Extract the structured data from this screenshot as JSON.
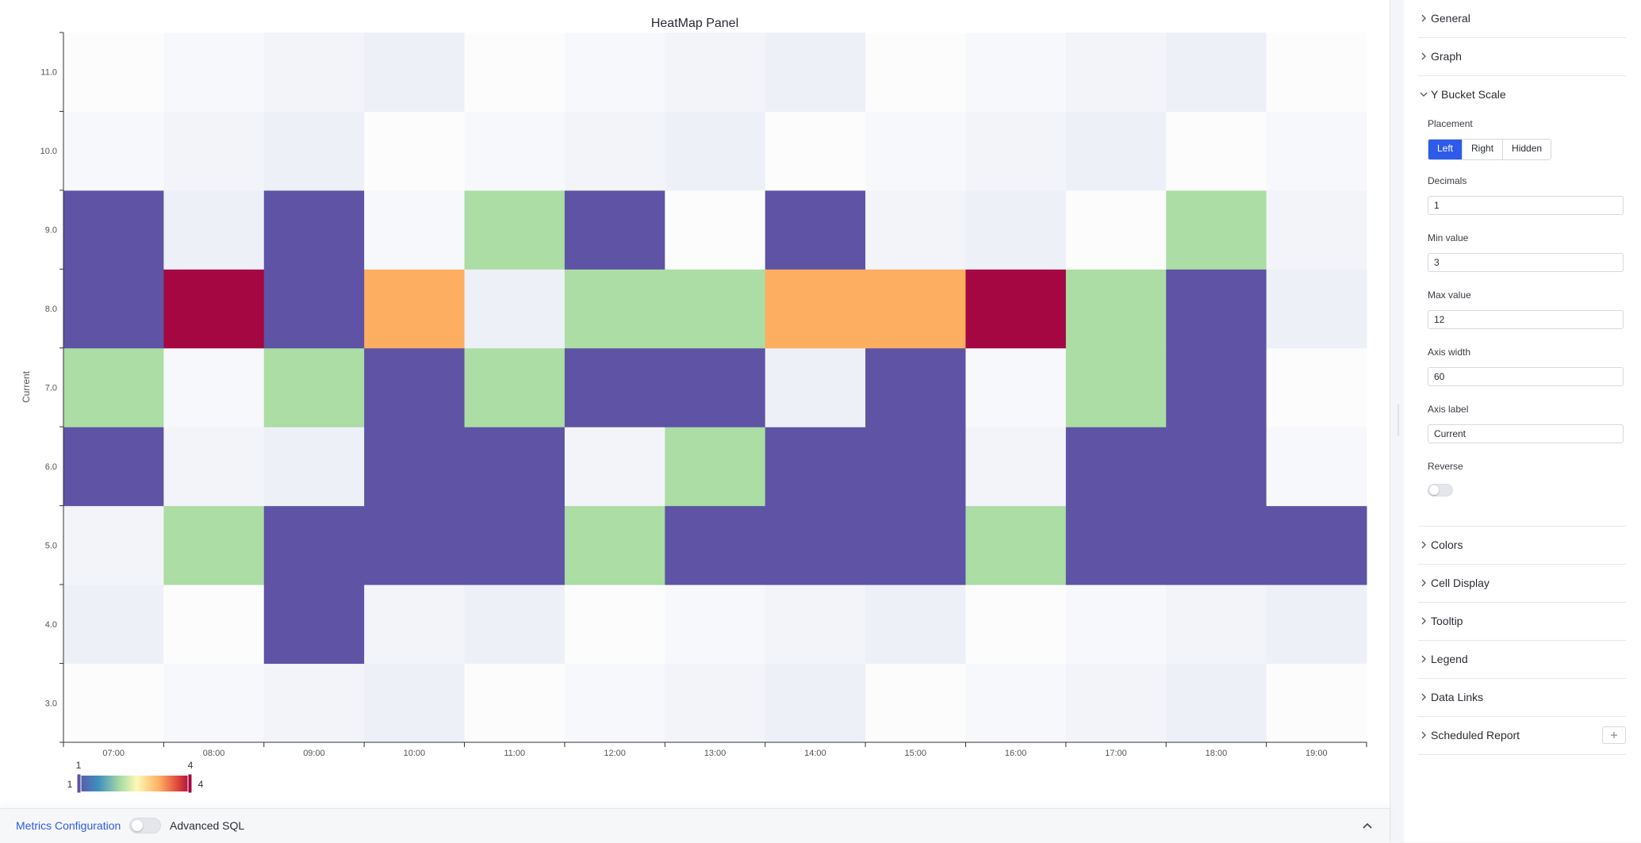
{
  "chart_data": {
    "type": "heatmap",
    "title": "HeatMap Panel",
    "ylabel": "Current",
    "x": [
      "07:00",
      "08:00",
      "09:00",
      "10:00",
      "11:00",
      "12:00",
      "13:00",
      "14:00",
      "15:00",
      "16:00",
      "17:00",
      "18:00",
      "19:00"
    ],
    "y": [
      "3.0",
      "4.0",
      "5.0",
      "6.0",
      "7.0",
      "8.0",
      "9.0",
      "10.0",
      "11.0"
    ],
    "values": [
      [
        0,
        0,
        0,
        0,
        0,
        0,
        0,
        0,
        0,
        0,
        0,
        0,
        0
      ],
      [
        0,
        0,
        1,
        0,
        0,
        0,
        0,
        0,
        0,
        0,
        0,
        0,
        0
      ],
      [
        0,
        2,
        1,
        1,
        1,
        2,
        1,
        1,
        1,
        2,
        1,
        1,
        1
      ],
      [
        1,
        0,
        0,
        1,
        1,
        0,
        2,
        1,
        1,
        0,
        1,
        1,
        0
      ],
      [
        2,
        0,
        2,
        1,
        2,
        1,
        1,
        0,
        1,
        0,
        2,
        1,
        0
      ],
      [
        1,
        4,
        1,
        3,
        0,
        2,
        2,
        3,
        3,
        4,
        2,
        1,
        0
      ],
      [
        1,
        0,
        1,
        0,
        2,
        1,
        0,
        1,
        0,
        0,
        0,
        2,
        0
      ],
      [
        0,
        0,
        0,
        0,
        0,
        0,
        0,
        0,
        0,
        0,
        0,
        0,
        0
      ],
      [
        0,
        0,
        0,
        0,
        0,
        0,
        0,
        0,
        0,
        0,
        0,
        0,
        0
      ]
    ],
    "color_scale": {
      "min": 1,
      "max": 4,
      "colors": [
        "#5e53a5",
        "#3e8fbf",
        "#abdda4",
        "#fdf9b5",
        "#fdae61",
        "#e0473c",
        "#a40742"
      ]
    },
    "legend": {
      "min_label": "1",
      "max_label": "4"
    }
  },
  "bottom_bar": {
    "metrics_link": "Metrics Configuration",
    "advanced_label": "Advanced SQL"
  },
  "sidebar": {
    "general": "General",
    "graph": "Graph",
    "y_bucket_scale": "Y Bucket Scale",
    "placement_label": "Placement",
    "placement_options": [
      "Left",
      "Right",
      "Hidden"
    ],
    "placement_selected": "Left",
    "decimals_label": "Decimals",
    "decimals_value": "1",
    "min_label": "Min value",
    "min_value": "3",
    "max_label": "Max value",
    "max_value": "12",
    "axis_width_label": "Axis width",
    "axis_width_value": "60",
    "axis_label_label": "Axis label",
    "axis_label_value": "Current",
    "reverse_label": "Reverse",
    "colors": "Colors",
    "cell_display": "Cell Display",
    "tooltip": "Tooltip",
    "legend": "Legend",
    "data_links": "Data Links",
    "scheduled_report": "Scheduled Report"
  }
}
